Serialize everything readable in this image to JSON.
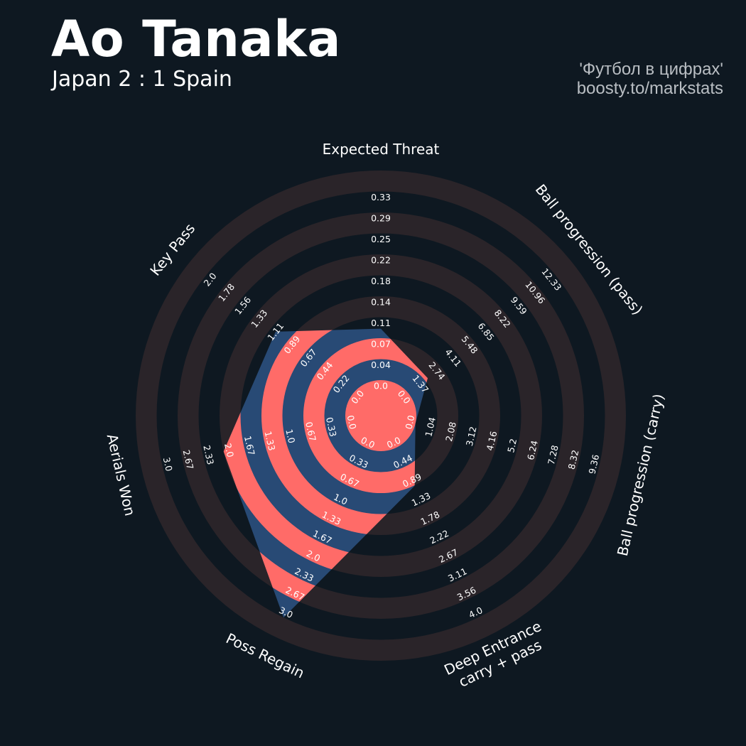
{
  "header": {
    "title": "Ao Tanaka",
    "subtitle": "Japan 2 : 1 Spain",
    "credit_line1": "'Футбол в цифрах'",
    "credit_line2": "boosty.to/markstats"
  },
  "colors": {
    "background": "#0e1821",
    "ring_dark": "#2a2429",
    "ring_light": "#0e1821",
    "player_fill": "#284a75",
    "ring_highlight": "#ff6b68",
    "text": "#ffffff",
    "credit": "#b9bec3"
  },
  "chart_data": {
    "type": "radar",
    "axes": [
      {
        "label": "Expected Threat",
        "min": 0.0,
        "max": 0.33,
        "ticks": [
          "0.0",
          "0.04",
          "0.07",
          "0.11",
          "0.14",
          "0.18",
          "0.22",
          "0.25",
          "0.29",
          "0.33"
        ]
      },
      {
        "label": "Ball progression (pass)",
        "min": 0.0,
        "max": 12.33,
        "ticks": [
          "0.0",
          "1.37",
          "2.74",
          "4.11",
          "5.48",
          "6.85",
          "8.22",
          "9.59",
          "10.96",
          "12.33"
        ]
      },
      {
        "label": "Ball progression (carry)",
        "min": 0.0,
        "max": 9.36,
        "ticks": [
          "0.0",
          "1.04",
          "2.08",
          "3.12",
          "4.16",
          "5.2",
          "6.24",
          "7.28",
          "8.32",
          "9.36"
        ]
      },
      {
        "label": "Deep Entrance\ncarry + pass",
        "min": 0.0,
        "max": 4.0,
        "ticks": [
          "0.0",
          "0.44",
          "0.89",
          "1.33",
          "1.78",
          "2.22",
          "2.67",
          "3.11",
          "3.56",
          "4.0"
        ]
      },
      {
        "label": "Poss Regain",
        "min": 0.0,
        "max": 3.0,
        "ticks": [
          "0.0",
          "0.33",
          "0.67",
          "1.0",
          "1.33",
          "1.67",
          "2.0",
          "2.33",
          "2.67",
          "3.0"
        ]
      },
      {
        "label": "Aerials Won",
        "min": 0.0,
        "max": 3.0,
        "ticks": [
          "0.0",
          "0.33",
          "0.67",
          "1.0",
          "1.33",
          "1.67",
          "2.0",
          "2.33",
          "2.67",
          "3.0"
        ]
      },
      {
        "label": "Key Pass",
        "min": 0.0,
        "max": 2.0,
        "ticks": [
          "0.0",
          "0.22",
          "0.44",
          "0.67",
          "0.89",
          "1.11",
          "1.33",
          "1.56",
          "1.78",
          "2.0"
        ]
      }
    ],
    "values": [
      0.09,
      1.6,
      0.0,
      0.9,
      3.0,
      2.0,
      1.05
    ],
    "grid": true,
    "legend": "none"
  }
}
